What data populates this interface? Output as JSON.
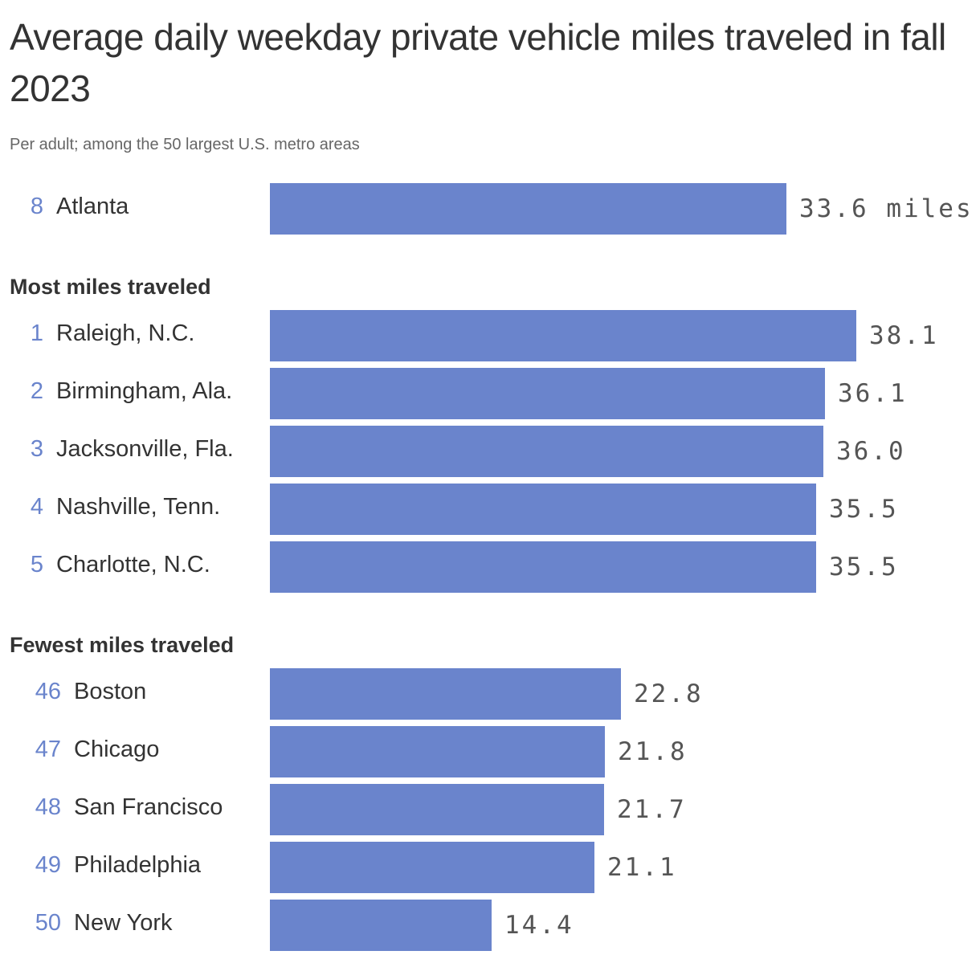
{
  "chart_data": {
    "type": "bar",
    "orientation": "horizontal",
    "title": "Average daily weekday private vehicle miles traveled in fall 2023",
    "subtitle": "Per adult; among the 50 largest U.S. metro areas",
    "xlim": [
      0,
      40
    ],
    "grid": false,
    "bar_color": "#6a84cc",
    "groups": [
      {
        "label": "",
        "rows": [
          {
            "rank": "8",
            "city": "Atlanta",
            "value": 33.6,
            "value_label": "33.6 miles"
          }
        ]
      },
      {
        "label": "Most miles traveled",
        "rows": [
          {
            "rank": "1",
            "city": "Raleigh, N.C.",
            "value": 38.1,
            "value_label": "38.1"
          },
          {
            "rank": "2",
            "city": "Birmingham, Ala.",
            "value": 36.1,
            "value_label": "36.1"
          },
          {
            "rank": "3",
            "city": "Jacksonville, Fla.",
            "value": 36.0,
            "value_label": "36.0"
          },
          {
            "rank": "4",
            "city": "Nashville, Tenn.",
            "value": 35.5,
            "value_label": "35.5"
          },
          {
            "rank": "5",
            "city": "Charlotte, N.C.",
            "value": 35.5,
            "value_label": "35.5"
          }
        ]
      },
      {
        "label": "Fewest miles traveled",
        "rows": [
          {
            "rank": "46",
            "city": "Boston",
            "value": 22.8,
            "value_label": "22.8"
          },
          {
            "rank": "47",
            "city": "Chicago",
            "value": 21.8,
            "value_label": "21.8"
          },
          {
            "rank": "48",
            "city": "San Francisco",
            "value": 21.7,
            "value_label": "21.7"
          },
          {
            "rank": "49",
            "city": "Philadelphia",
            "value": 21.1,
            "value_label": "21.1"
          },
          {
            "rank": "50",
            "city": "New York",
            "value": 14.4,
            "value_label": "14.4"
          }
        ]
      }
    ]
  }
}
